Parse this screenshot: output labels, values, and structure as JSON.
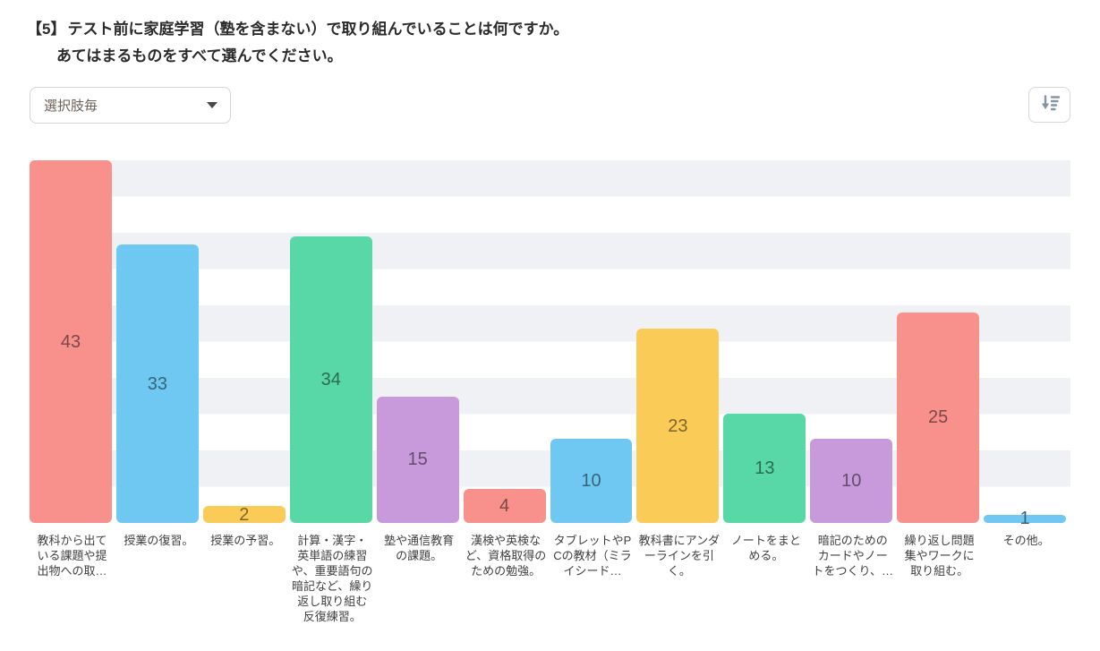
{
  "question": {
    "number": "【5】",
    "text": "テスト前に家庭学習（塾を含まない）で取り組んでいることは何ですか。",
    "text_line2": "あてはまるものをすべて選んでください。"
  },
  "toolbar": {
    "group_by_select": {
      "value": "選択肢毎"
    },
    "sort_button": {
      "icon": "sort-descending"
    }
  },
  "chart_data": {
    "type": "bar",
    "title": "",
    "xlabel": "",
    "ylabel": "",
    "categories": [
      "教科から出ている課題や提出物への取…",
      "授業の復習。",
      "授業の予習。",
      "計算・漢字・英単語の練習や、重要語句の暗記など、繰り返し取り組む反復練習。",
      "塾や通信教育の課題。",
      "漢検や英検など、資格取得のための勉強。",
      "タブレットやPCの教材（ミライシード…",
      "教科書にアンダーラインを引く。",
      "ノートをまとめる。",
      "暗記のためのカードやノートをつくり、…",
      "繰り返し問題集やワークに取り組む。",
      "その他。"
    ],
    "values": [
      43,
      33,
      2,
      34,
      15,
      4,
      10,
      23,
      13,
      10,
      25,
      1
    ],
    "ylim": [
      0,
      43
    ],
    "grid": "horizontal alternating bands, no axis labels",
    "band_color": "#F0F1F5",
    "legend": "none",
    "value_labels": "centered inside bars",
    "color_cycle": [
      "red",
      "blue",
      "yellow",
      "green",
      "purple"
    ],
    "palette": {
      "red": {
        "fill": "#F8918C",
        "label": "#7C4846"
      },
      "blue": {
        "fill": "#6FC8F2",
        "label": "#376479"
      },
      "yellow": {
        "fill": "#FBCB58",
        "label": "#7D652C"
      },
      "green": {
        "fill": "#58D8A6",
        "label": "#2C6C53"
      },
      "purple": {
        "fill": "#C89ADB",
        "label": "#644D6D"
      }
    }
  }
}
